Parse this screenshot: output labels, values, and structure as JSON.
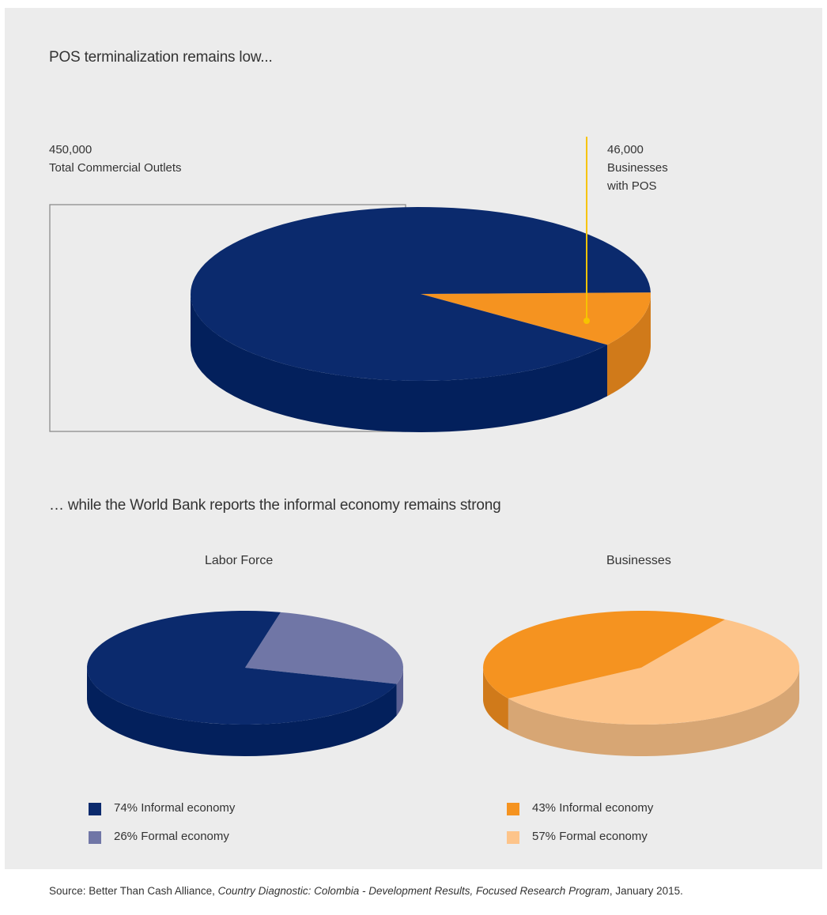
{
  "section1": {
    "title": "POS terminalization remains low...",
    "total_label_value": "450,000",
    "total_label_text": "Total Commercial Outlets",
    "pos_label_value": "46,000",
    "pos_label_line1": "Businesses",
    "pos_label_line2": "with POS"
  },
  "section2": {
    "title": "… while the World Bank reports the informal economy remains strong",
    "left_chart_title": "Labor Force",
    "right_chart_title": "Businesses",
    "legend_left": [
      {
        "text": "74% Informal economy",
        "color": "#0b2a6d"
      },
      {
        "text": "26% Formal economy",
        "color": "#7076a6"
      }
    ],
    "legend_right": [
      {
        "text": "43% Informal economy",
        "color": "#f59320"
      },
      {
        "text": "57% Formal economy",
        "color": "#fdc48a"
      }
    ]
  },
  "source": {
    "prefix": "Source: Better Than Cash Alliance, ",
    "italic": "Country Diagnostic: Colombia - Development Results, Focused Research Program",
    "suffix": ", January 2015."
  },
  "colors": {
    "navy": "#0b2a6d",
    "navy_side": "#03205c",
    "orange": "#f59320",
    "orange_side": "#d07a1a",
    "lavender": "#7076a6",
    "lavender_side": "#5b6093",
    "peach": "#fdc48a",
    "peach_side": "#d7a674",
    "leader_line": "#f7c300"
  },
  "chart_data": [
    {
      "type": "pie",
      "categories": [
        "Total Commercial Outlets",
        "Businesses with POS"
      ],
      "values": [
        450000,
        46000
      ],
      "title": "POS terminalization remains low..."
    },
    {
      "type": "pie",
      "title": "Labor Force",
      "categories": [
        "Informal economy",
        "Formal economy"
      ],
      "values": [
        74,
        26
      ]
    },
    {
      "type": "pie",
      "title": "Businesses",
      "categories": [
        "Informal economy",
        "Formal economy"
      ],
      "values": [
        43,
        57
      ]
    }
  ]
}
